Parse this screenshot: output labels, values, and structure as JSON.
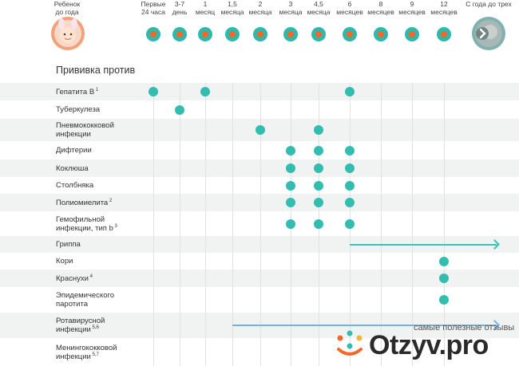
{
  "header": {
    "left_label": "Ребенок\nдо года",
    "right_label": "С года до трех",
    "ages": [
      "Первые\n24 часа",
      "3-7\nдень",
      "1\nмесяц",
      "1,5\nмесяца",
      "2\nмесяца",
      "3\nмесяца",
      "4,5\nмесяца",
      "6\nмесяцев",
      "8\nмесяцев",
      "9\nмесяцев",
      "12\nмесяцев"
    ]
  },
  "section_title": "Прививка против",
  "rows": [
    {
      "label": "Гепатита В",
      "sup": "1",
      "dots": [
        0,
        2,
        7
      ]
    },
    {
      "label": "Туберкулеза",
      "sup": "",
      "dots": [
        1
      ]
    },
    {
      "label": "Пневмококковой\nинфекции",
      "sup": "",
      "dots": [
        4,
        6
      ]
    },
    {
      "label": "Дифтерии",
      "sup": "",
      "dots": [
        5,
        6,
        7
      ]
    },
    {
      "label": "Коклюша",
      "sup": "",
      "dots": [
        5,
        6,
        7
      ]
    },
    {
      "label": "Столбняка",
      "sup": "",
      "dots": [
        5,
        6,
        7
      ]
    },
    {
      "label": "Полиомиелита",
      "sup": "2",
      "dots": [
        5,
        6,
        7
      ]
    },
    {
      "label": "Гемофильной\nинфекции, тип b",
      "sup": "3",
      "dots": [
        5,
        6,
        7
      ]
    },
    {
      "label": "Гриппа",
      "sup": "",
      "dots": [],
      "arrow_from": 7,
      "arrow_color": "#38c3b6"
    },
    {
      "label": "Кори",
      "sup": "",
      "dots": [
        10
      ]
    },
    {
      "label": "Краснухи",
      "sup": "4",
      "dots": [
        10
      ]
    },
    {
      "label": "Эпидемического\nпаротита",
      "sup": "",
      "dots": [
        10
      ]
    },
    {
      "label": "Ротавирусной\nинфекции",
      "sup": "5,6",
      "dots": [],
      "arrow_from": 3,
      "arrow_color": "#6fb4e4"
    },
    {
      "label": "Менингококковой\nинфекции",
      "sup": "5,7",
      "dots": []
    }
  ],
  "watermark": {
    "caption": "самые полезные отзывы",
    "logo": "Otzyv.pro"
  },
  "colors": {
    "teal": "#2fb8ac",
    "orange": "#f2672a",
    "shade": "#f1f2f2",
    "rota_arrow": "#6fb4e4"
  }
}
